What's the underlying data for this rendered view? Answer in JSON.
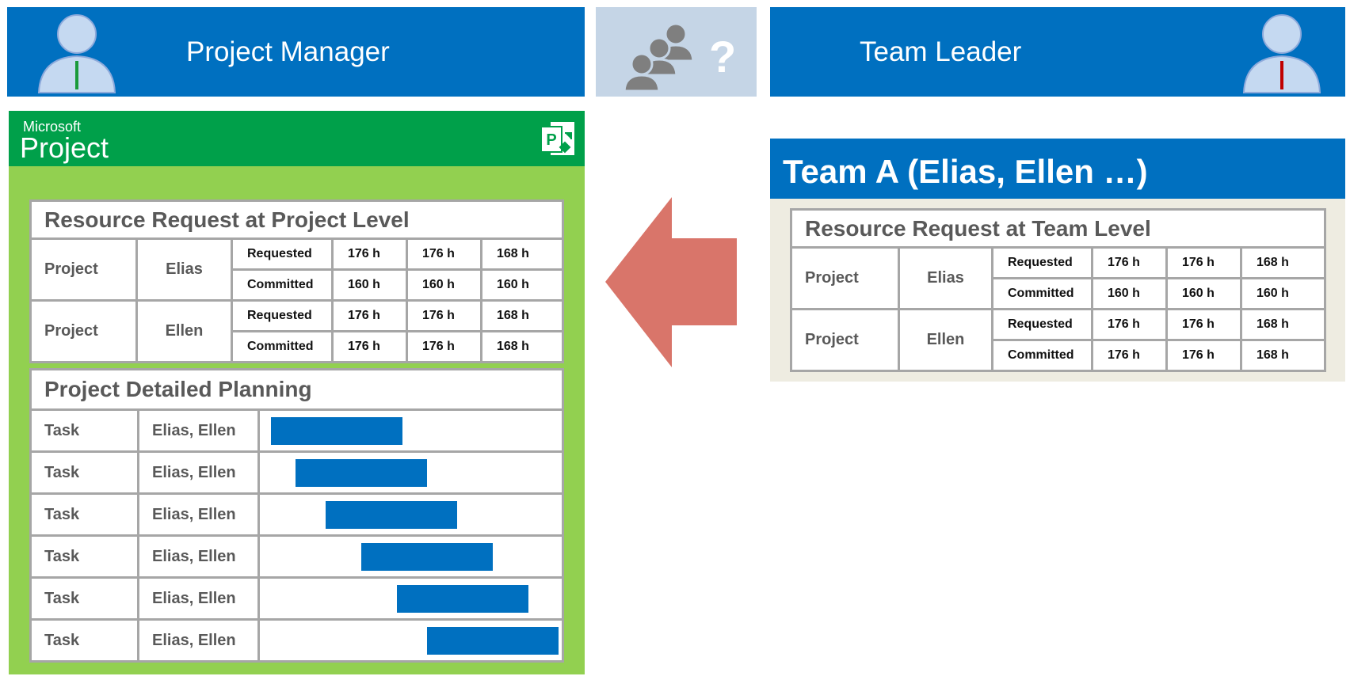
{
  "header": {
    "left_title": "Project Manager",
    "right_title": "Team Leader",
    "help_symbol": "?"
  },
  "project_app": {
    "brand": "Microsoft",
    "name": "Project",
    "icon_letter": "P",
    "resource_table": {
      "title": "Resource Request at Project Level",
      "rows": [
        {
          "entity": "Project",
          "person": "Elias",
          "lines": [
            [
              "Requested",
              "176 h",
              "176 h",
              "168 h"
            ],
            [
              "Committed",
              "160 h",
              "160 h",
              "160 h"
            ]
          ]
        },
        {
          "entity": "Project",
          "person": "Ellen",
          "lines": [
            [
              "Requested",
              "176 h",
              "176 h",
              "168 h"
            ],
            [
              "Committed",
              "176 h",
              "176 h",
              "168 h"
            ]
          ]
        }
      ]
    },
    "planning": {
      "title": "Project Detailed Planning",
      "rows": [
        [
          "Task",
          "Elias, Ellen"
        ],
        [
          "Task",
          "Elias, Ellen"
        ],
        [
          "Task",
          "Elias, Ellen"
        ],
        [
          "Task",
          "Elias, Ellen"
        ],
        [
          "Task",
          "Elias, Ellen"
        ],
        [
          "Task",
          "Elias, Ellen"
        ]
      ]
    }
  },
  "team_panel": {
    "title": "Team A (Elias, Ellen …)",
    "resource_table": {
      "title": "Resource Request at Team Level",
      "rows": [
        {
          "entity": "Project",
          "person": "Elias",
          "lines": [
            [
              "Requested",
              "176 h",
              "176 h",
              "168 h"
            ],
            [
              "Committed",
              "160 h",
              "160 h",
              "160 h"
            ]
          ]
        },
        {
          "entity": "Project",
          "person": "Ellen",
          "lines": [
            [
              "Requested",
              "176 h",
              "176 h",
              "168 h"
            ],
            [
              "Committed",
              "176 h",
              "176 h",
              "168 h"
            ]
          ]
        }
      ]
    }
  }
}
